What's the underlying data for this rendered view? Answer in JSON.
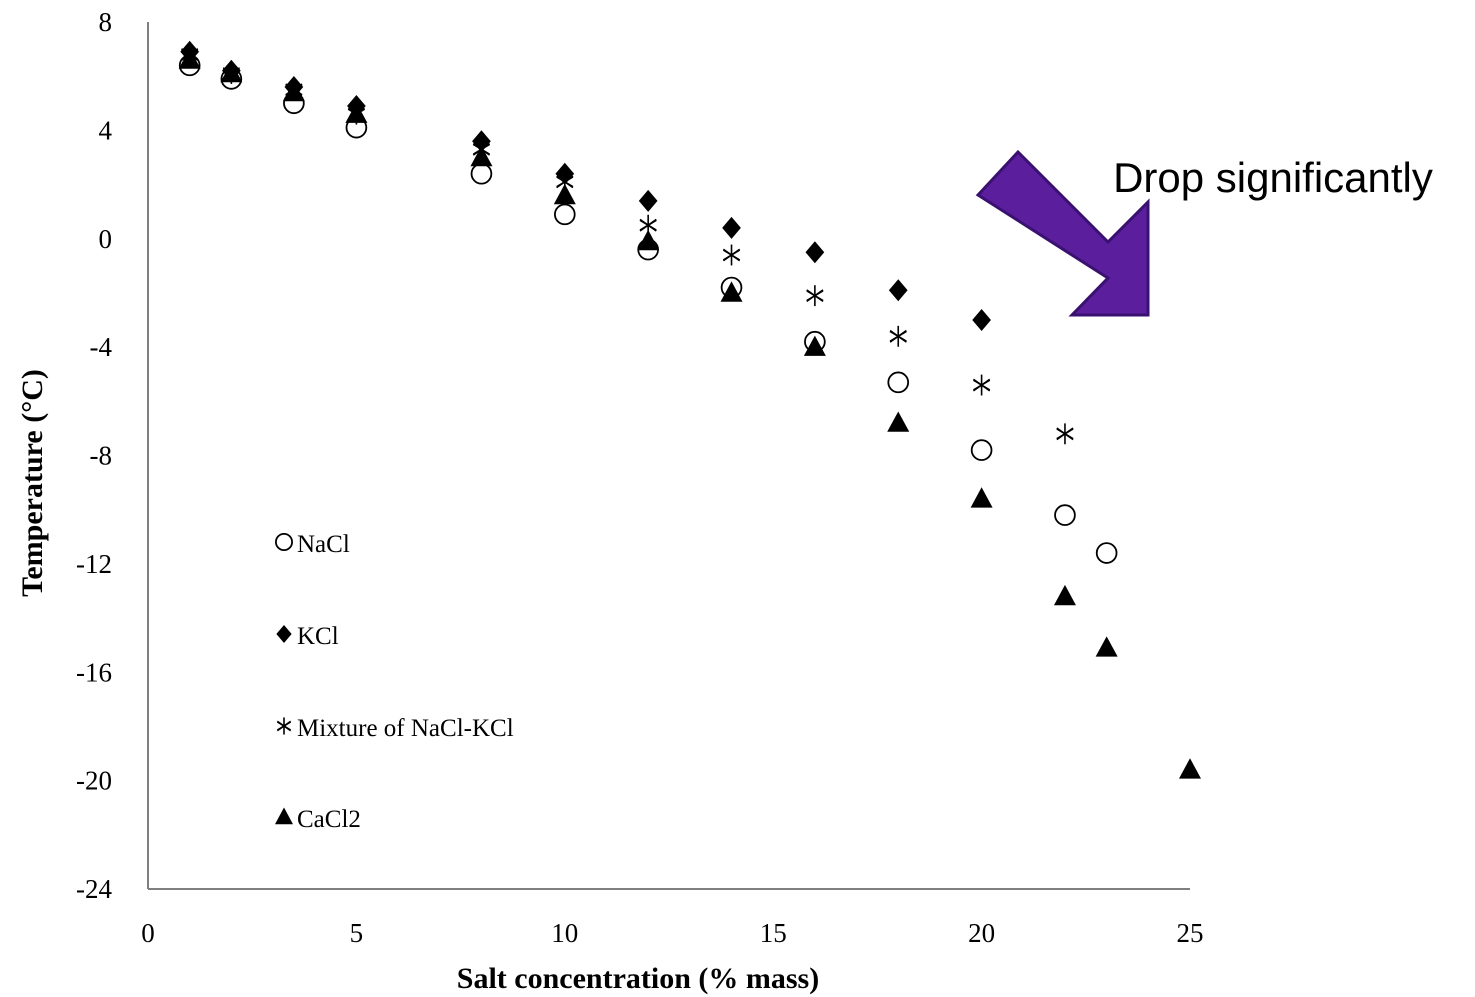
{
  "chart_data": {
    "type": "scatter",
    "title": "",
    "xlabel": "Salt concentration (% mass)",
    "ylabel": "Temperature (°C)",
    "xlim": [
      0,
      25
    ],
    "ylim": [
      -24,
      8
    ],
    "xticks": [
      "0",
      "5",
      "10",
      "15",
      "20",
      "25"
    ],
    "yticks": [
      "8",
      "4",
      "0",
      "-4",
      "-8",
      "-12",
      "-16",
      "-20",
      "-24"
    ],
    "grid": false,
    "legend_position": "inside-left",
    "series": [
      {
        "name": "NaCl",
        "marker": "circle-open",
        "x": [
          1,
          2,
          3.5,
          5,
          8,
          10,
          12,
          14,
          16,
          18,
          20,
          22,
          23
        ],
        "y": [
          6.4,
          5.9,
          5.0,
          4.1,
          2.4,
          0.9,
          -0.4,
          -1.8,
          -3.8,
          -5.3,
          -7.8,
          -10.2,
          -11.6
        ]
      },
      {
        "name": "KCl",
        "marker": "diamond-filled",
        "x": [
          1,
          2,
          3.5,
          5,
          8,
          10,
          12,
          14,
          16,
          18,
          20
        ],
        "y": [
          6.9,
          6.2,
          5.6,
          4.9,
          3.6,
          2.4,
          1.4,
          0.4,
          -0.5,
          -1.9,
          -3.0
        ]
      },
      {
        "name": "Mixture of NaCl-KCl",
        "marker": "asterisk",
        "x": [
          1,
          2,
          3.5,
          5,
          8,
          10,
          12,
          14,
          16,
          18,
          20,
          22
        ],
        "y": [
          6.8,
          6.1,
          5.5,
          4.6,
          3.3,
          2.1,
          0.5,
          -0.6,
          -2.1,
          -3.6,
          -5.4,
          -7.2
        ]
      },
      {
        "name": "CaCl2",
        "marker": "triangle-filled",
        "x": [
          1,
          2,
          3.5,
          5,
          8,
          10,
          12,
          14,
          16,
          18,
          20,
          22,
          23,
          25
        ],
        "y": [
          6.6,
          6.1,
          5.4,
          4.6,
          3.0,
          1.6,
          -0.1,
          -2.0,
          -4.0,
          -6.8,
          -9.6,
          -13.2,
          -15.1,
          -19.6
        ]
      }
    ],
    "annotation": {
      "text": "Drop significantly",
      "arrow_color": "#5b1f9e",
      "arrow_stroke": "#3a1170"
    }
  }
}
